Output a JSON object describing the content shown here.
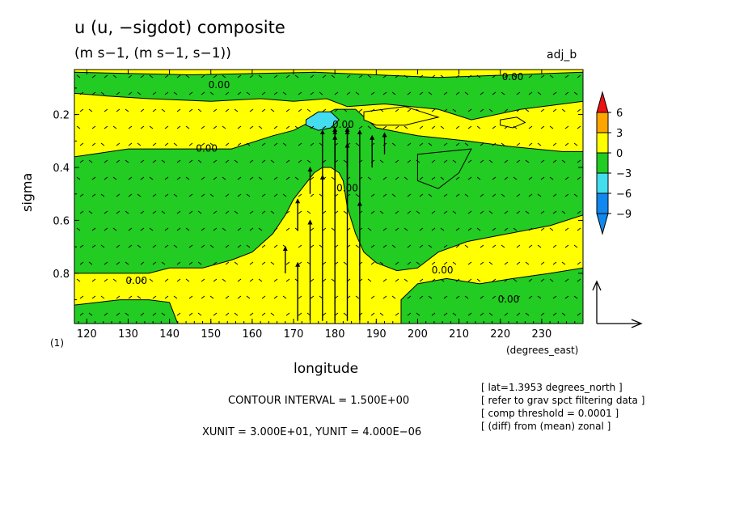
{
  "header": {
    "title": "u (u, −sigdot) composite",
    "subtitle": "(m s−1, (m s−1, s−1))",
    "tag": "adj_b"
  },
  "footer": {
    "level": "(1)",
    "x_units": "(degrees_east)",
    "contour_interval": "CONTOUR INTERVAL = 1.500E+00",
    "vector_units": "XUNIT = 3.000E+01, YUNIT = 4.000E−06",
    "notes": [
      "[ lat=1.3953 degrees_north ]",
      "[ refer to grav spct filtering data ]",
      "[ comp threshold = 0.0001 ]",
      "[ (diff) from (mean) zonal ]"
    ]
  },
  "colors": {
    "yellow": "#ffff00",
    "green": "#22cc22",
    "cyan": "#44ddee",
    "blue": "#1188ee",
    "orange": "#ffa500",
    "red": "#ee1111"
  },
  "chart_data": {
    "type": "contour",
    "title": "u (u, −sigdot) composite",
    "xlabel": "longitude",
    "ylabel": "sigma",
    "xlim": [
      117,
      240
    ],
    "ylim": [
      0.03,
      0.99
    ],
    "y_inverted": true,
    "x_ticks": [
      120,
      130,
      140,
      150,
      160,
      170,
      180,
      190,
      200,
      210,
      220,
      230
    ],
    "y_ticks": [
      0.2,
      0.4,
      0.6,
      0.8
    ],
    "contour_labels": [
      {
        "text": "0.00",
        "x": 152,
        "y": 0.1
      },
      {
        "text": "0.00",
        "x": 223,
        "y": 0.07
      },
      {
        "text": "0.00",
        "x": 182,
        "y": 0.25
      },
      {
        "text": "0.00",
        "x": 149,
        "y": 0.34
      },
      {
        "text": "0.00",
        "x": 183,
        "y": 0.49
      },
      {
        "text": "0.00",
        "x": 132,
        "y": 0.84
      },
      {
        "text": "0.00",
        "x": 206,
        "y": 0.8
      },
      {
        "text": "0.00",
        "x": 222,
        "y": 0.91
      }
    ],
    "colorbar": {
      "levels": [
        "6",
        "3",
        "0",
        "−3",
        "−6",
        "−9"
      ]
    },
    "regions": [
      {
        "value_band": "0 to 3",
        "polygon": [
          [
            117,
            0.03
          ],
          [
            240,
            0.03
          ],
          [
            240,
            0.99
          ],
          [
            117,
            0.99
          ]
        ]
      },
      {
        "value_band": "−3 to 0",
        "polygon": [
          [
            117,
            0.04
          ],
          [
            145,
            0.05
          ],
          [
            175,
            0.04
          ],
          [
            205,
            0.06
          ],
          [
            240,
            0.04
          ],
          [
            240,
            0.15
          ],
          [
            225,
            0.18
          ],
          [
            213,
            0.22
          ],
          [
            205,
            0.18
          ],
          [
            192,
            0.16
          ],
          [
            183,
            0.17
          ],
          [
            178,
            0.14
          ],
          [
            170,
            0.15
          ],
          [
            162,
            0.14
          ],
          [
            150,
            0.15
          ],
          [
            135,
            0.14
          ],
          [
            125,
            0.13
          ],
          [
            117,
            0.12
          ]
        ]
      },
      {
        "value_band": "−3 to 0",
        "polygon": [
          [
            117,
            0.36
          ],
          [
            130,
            0.33
          ],
          [
            145,
            0.33
          ],
          [
            155,
            0.33
          ],
          [
            165,
            0.28
          ],
          [
            170,
            0.26
          ],
          [
            175,
            0.22
          ],
          [
            180,
            0.18
          ],
          [
            185,
            0.18
          ],
          [
            190,
            0.25
          ],
          [
            200,
            0.28
          ],
          [
            212,
            0.3
          ],
          [
            222,
            0.32
          ],
          [
            235,
            0.34
          ],
          [
            240,
            0.34
          ],
          [
            240,
            0.58
          ],
          [
            232,
            0.62
          ],
          [
            222,
            0.65
          ],
          [
            212,
            0.68
          ],
          [
            205,
            0.72
          ],
          [
            200,
            0.78
          ],
          [
            195,
            0.79
          ],
          [
            190,
            0.76
          ],
          [
            187,
            0.72
          ],
          [
            185,
            0.65
          ],
          [
            183,
            0.55
          ],
          [
            182,
            0.45
          ],
          [
            181,
            0.42
          ],
          [
            179,
            0.4
          ],
          [
            177,
            0.4
          ],
          [
            175,
            0.42
          ],
          [
            173,
            0.46
          ],
          [
            170,
            0.52
          ],
          [
            168,
            0.58
          ],
          [
            165,
            0.65
          ],
          [
            160,
            0.72
          ],
          [
            155,
            0.75
          ],
          [
            148,
            0.78
          ],
          [
            140,
            0.78
          ],
          [
            135,
            0.8
          ],
          [
            125,
            0.8
          ],
          [
            117,
            0.8
          ]
        ]
      },
      {
        "value_band": "−3 to 0",
        "polygon": [
          [
            200,
            0.35
          ],
          [
            213,
            0.33
          ],
          [
            210,
            0.42
          ],
          [
            205,
            0.48
          ],
          [
            200,
            0.45
          ]
        ]
      },
      {
        "value_band": "−3 to 0",
        "polygon": [
          [
            117,
            0.92
          ],
          [
            128,
            0.9
          ],
          [
            135,
            0.9
          ],
          [
            140,
            0.91
          ],
          [
            142,
            0.99
          ],
          [
            117,
            0.99
          ]
        ]
      },
      {
        "value_band": "−3 to 0",
        "polygon": [
          [
            196,
            0.99
          ],
          [
            196,
            0.9
          ],
          [
            200,
            0.84
          ],
          [
            207,
            0.82
          ],
          [
            215,
            0.84
          ],
          [
            223,
            0.82
          ],
          [
            232,
            0.8
          ],
          [
            240,
            0.78
          ],
          [
            240,
            0.99
          ]
        ]
      },
      {
        "value_band": "0 to 3",
        "polygon": [
          [
            187,
            0.19
          ],
          [
            197,
            0.17
          ],
          [
            205,
            0.21
          ],
          [
            197,
            0.24
          ],
          [
            190,
            0.24
          ],
          [
            187,
            0.22
          ]
        ]
      },
      {
        "value_band": "−6 to −3",
        "polygon": [
          [
            173,
            0.22
          ],
          [
            176,
            0.19
          ],
          [
            179,
            0.19
          ],
          [
            181,
            0.22
          ],
          [
            179,
            0.25
          ],
          [
            176,
            0.26
          ],
          [
            173,
            0.24
          ]
        ]
      },
      {
        "value_band": "0 to 3",
        "polygon": [
          [
            220,
            0.22
          ],
          [
            224,
            0.21
          ],
          [
            226,
            0.23
          ],
          [
            223,
            0.25
          ],
          [
            220,
            0.24
          ]
        ]
      }
    ],
    "vectors": [
      {
        "x": 174,
        "y": 0.98,
        "dy": -0.38
      },
      {
        "x": 177,
        "y": 0.98,
        "dy": -0.55
      },
      {
        "x": 180,
        "y": 0.98,
        "dy": -0.7
      },
      {
        "x": 183,
        "y": 0.98,
        "dy": -0.72
      },
      {
        "x": 186,
        "y": 0.98,
        "dy": -0.45
      },
      {
        "x": 171,
        "y": 0.98,
        "dy": -0.22
      },
      {
        "x": 177,
        "y": 0.56,
        "dy": -0.3
      },
      {
        "x": 180,
        "y": 0.56,
        "dy": -0.3
      },
      {
        "x": 183,
        "y": 0.56,
        "dy": -0.25
      },
      {
        "x": 186,
        "y": 0.56,
        "dy": -0.3
      },
      {
        "x": 180,
        "y": 0.4,
        "dy": -0.15
      },
      {
        "x": 183,
        "y": 0.4,
        "dy": -0.15
      },
      {
        "x": 189,
        "y": 0.4,
        "dy": -0.12
      },
      {
        "x": 174,
        "y": 0.5,
        "dy": -0.1
      },
      {
        "x": 192,
        "y": 0.35,
        "dy": -0.08
      },
      {
        "x": 168,
        "y": 0.8,
        "dy": -0.1
      },
      {
        "x": 171,
        "y": 0.64,
        "dy": -0.12
      }
    ]
  }
}
